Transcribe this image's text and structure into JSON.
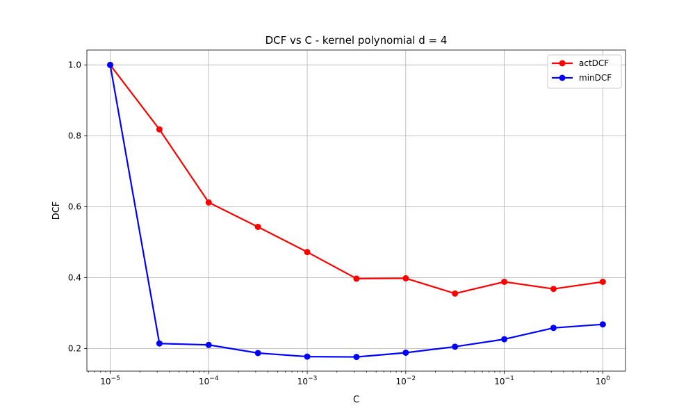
{
  "chart_data": {
    "type": "line",
    "title": "DCF vs C - kernel polynomial d = 4",
    "xlabel": "C",
    "ylabel": "DCF",
    "xscale": "log",
    "xlim": [
      5.8e-06,
      1.7
    ],
    "ylim": [
      0.136,
      1.042
    ],
    "grid": true,
    "legend_position": "top-right",
    "x": [
      1e-05,
      3.16e-05,
      0.0001,
      0.000316,
      0.001,
      0.00316,
      0.01,
      0.0316,
      0.1,
      0.316,
      1
    ],
    "x_tick_labels": [
      {
        "base": "10",
        "exp": "−5"
      },
      {
        "base": "10",
        "exp": "−4"
      },
      {
        "base": "10",
        "exp": "−3"
      },
      {
        "base": "10",
        "exp": "−2"
      },
      {
        "base": "10",
        "exp": "−1"
      },
      {
        "base": "10",
        "exp": "0"
      }
    ],
    "y_ticks": [
      0.2,
      0.4,
      0.6,
      0.8,
      1.0
    ],
    "y_tick_labels": [
      "0.2",
      "0.4",
      "0.6",
      "0.8",
      "1.0"
    ],
    "series": [
      {
        "name": "actDCF",
        "color": "#ff0000",
        "values": [
          1.0,
          0.818,
          0.612,
          0.543,
          0.472,
          0.397,
          0.398,
          0.355,
          0.388,
          0.368,
          0.388
        ]
      },
      {
        "name": "minDCF",
        "color": "#0000ff",
        "values": [
          1.0,
          0.214,
          0.21,
          0.187,
          0.177,
          0.176,
          0.188,
          0.205,
          0.226,
          0.258,
          0.268
        ]
      }
    ]
  }
}
